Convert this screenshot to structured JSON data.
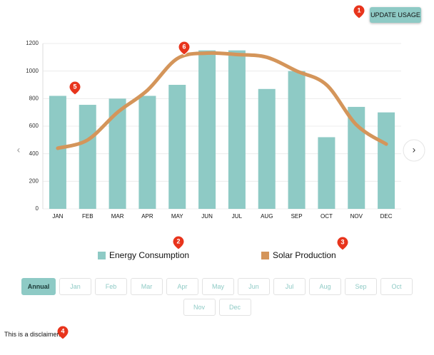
{
  "chart_data": {
    "type": "bar",
    "categories": [
      "JAN",
      "FEB",
      "MAR",
      "APR",
      "MAY",
      "JUN",
      "JUL",
      "AUG",
      "SEP",
      "OCT",
      "NOV",
      "DEC"
    ],
    "series": [
      {
        "name": "Energy Consumption",
        "type": "bar",
        "color": "#8ecac5",
        "values": [
          820,
          755,
          800,
          820,
          900,
          1150,
          1150,
          870,
          1000,
          520,
          740,
          700
        ]
      },
      {
        "name": "Solar Production",
        "type": "line",
        "color": "#d4955a",
        "values": [
          440,
          500,
          700,
          860,
          1090,
          1130,
          1120,
          1100,
          1000,
          900,
          610,
          470
        ]
      }
    ],
    "ylim": [
      0,
      1200
    ],
    "yticks": [
      0,
      200,
      400,
      600,
      800,
      1000,
      1200
    ],
    "grid": true
  },
  "ui": {
    "update_button": "UPDATE USAGE",
    "annotations": [
      "1",
      "2",
      "3",
      "4",
      "5",
      "6"
    ],
    "periods": [
      "Annual",
      "Jan",
      "Feb",
      "Mar",
      "Apr",
      "May",
      "Jun",
      "Jul",
      "Aug",
      "Sep",
      "Oct",
      "Nov",
      "Dec"
    ],
    "disclaimer": "This is a disclaimer."
  }
}
